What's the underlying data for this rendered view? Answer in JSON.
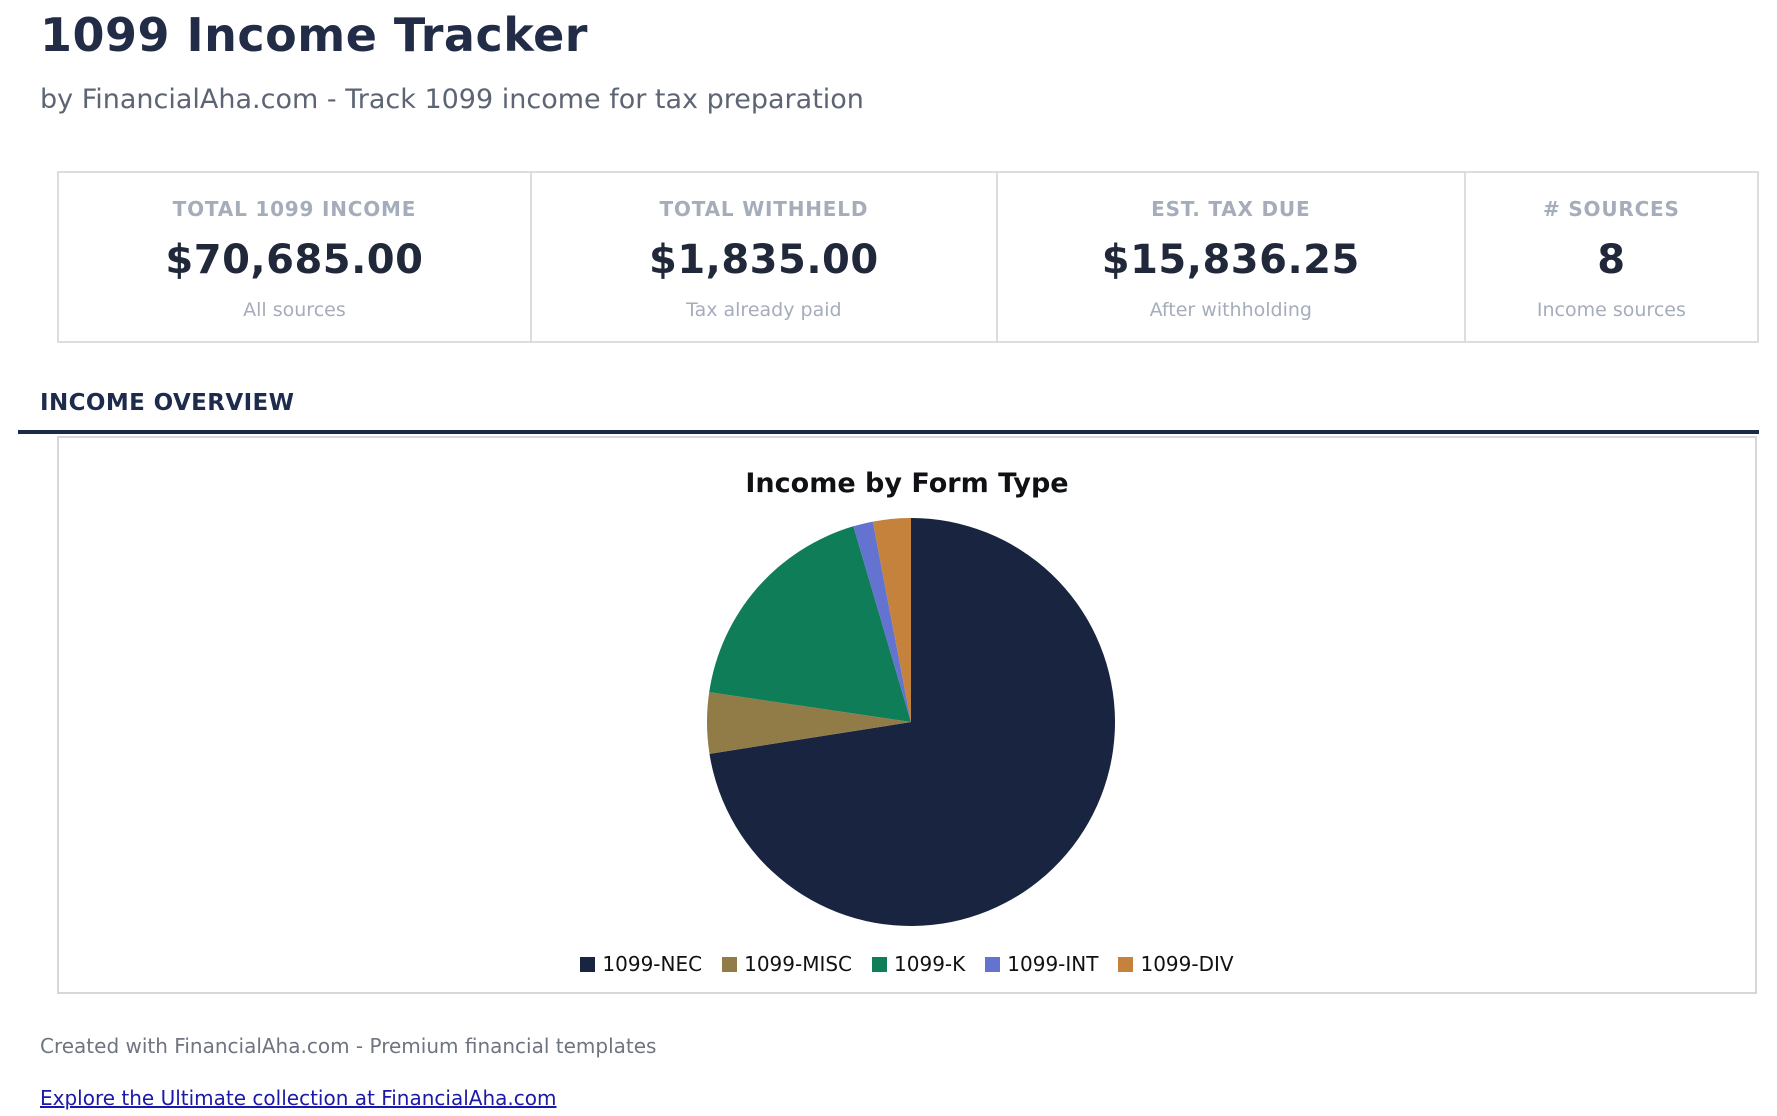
{
  "header": {
    "title": "1099 Income Tracker",
    "subtitle": "by FinancialAha.com - Track 1099 income for tax preparation"
  },
  "stats": {
    "cards": [
      {
        "label": "TOTAL 1099 INCOME",
        "value": "$70,685.00",
        "sublabel": "All sources"
      },
      {
        "label": "TOTAL WITHHELD",
        "value": "$1,835.00",
        "sublabel": "Tax already paid"
      },
      {
        "label": "EST. TAX DUE",
        "value": "$15,836.25",
        "sublabel": "After withholding"
      },
      {
        "label": "# SOURCES",
        "value": "8",
        "sublabel": "Income sources"
      }
    ]
  },
  "section": {
    "title": "INCOME OVERVIEW"
  },
  "chart_data": {
    "type": "pie",
    "title": "Income by Form Type",
    "total": 70685,
    "start_angle_deg": 0,
    "direction": "clockwise",
    "legend_position": "bottom",
    "slices": [
      {
        "label": "1099-NEC",
        "value": 51250,
        "percent": 72.5,
        "color": "#182440"
      },
      {
        "label": "1099-MISC",
        "value": 3415,
        "percent": 4.8,
        "color": "#917c47"
      },
      {
        "label": "1099-K",
        "value": 12800,
        "percent": 18.1,
        "color": "#0e7d58"
      },
      {
        "label": "1099-INT",
        "value": 1100,
        "percent": 1.6,
        "color": "#6373cf"
      },
      {
        "label": "1099-DIV",
        "value": 2120,
        "percent": 3.0,
        "color": "#c4823c"
      }
    ]
  },
  "footer": {
    "credit": "Created with FinancialAha.com - Premium financial templates",
    "link_text": "Explore the Ultimate collection at FinancialAha.com"
  },
  "colors": {
    "heading": "#222c47",
    "accent_rule": "#1b2a4a",
    "muted_label": "#a5adbb",
    "link": "#1c19a8",
    "panel_border": "#d7d7da"
  }
}
